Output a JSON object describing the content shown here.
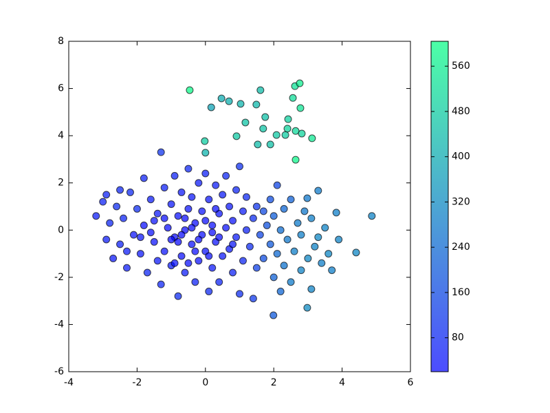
{
  "chart_data": {
    "type": "scatter",
    "colormap": "winter",
    "alpha": 0.7,
    "xlim": [
      -4,
      6
    ],
    "xticks": [
      -4,
      -2,
      0,
      2,
      4,
      6
    ],
    "ylim": [
      -6,
      8
    ],
    "yticks": [
      -6,
      -4,
      -2,
      0,
      2,
      4,
      6,
      8
    ],
    "clim": [
      20,
      604
    ],
    "cticks": [
      80,
      160,
      240,
      320,
      400,
      480,
      560
    ],
    "x": [
      -3.2,
      -3.0,
      -2.9,
      -2.8,
      -2.7,
      -2.6,
      -2.5,
      -2.4,
      -2.3,
      -2.2,
      -2.1,
      -2.0,
      -1.9,
      -1.8,
      -1.8,
      -1.7,
      -1.6,
      -1.5,
      -1.4,
      -1.3,
      -1.3,
      -1.2,
      -1.2,
      -1.1,
      -1.0,
      -1.0,
      -0.9,
      -0.9,
      -0.8,
      -0.8,
      -0.7,
      -0.7,
      -0.6,
      -0.6,
      -0.5,
      -0.5,
      -0.4,
      -0.4,
      -0.3,
      -0.3,
      -0.2,
      -0.2,
      -0.1,
      -0.1,
      0.0,
      0.0,
      0.1,
      0.1,
      0.2,
      0.2,
      0.3,
      0.3,
      0.4,
      0.4,
      0.5,
      0.5,
      0.6,
      0.6,
      0.7,
      0.7,
      0.8,
      0.8,
      0.9,
      0.9,
      1.0,
      1.0,
      1.1,
      1.1,
      1.2,
      1.2,
      1.3,
      1.4,
      1.4,
      1.5,
      1.5,
      1.6,
      1.7,
      1.7,
      1.8,
      1.9,
      1.9,
      2.0,
      2.0,
      2.1,
      2.1,
      2.2,
      2.2,
      2.3,
      2.3,
      2.4,
      2.5,
      2.5,
      2.6,
      2.7,
      2.8,
      2.8,
      2.9,
      3.0,
      3.1,
      3.1,
      3.2,
      3.3,
      3.4,
      3.5,
      3.6,
      3.7,
      3.9,
      -2.9,
      -2.5,
      -1.6,
      -1.4,
      -1.0,
      -0.8,
      -0.6,
      -0.4,
      -0.2,
      0.0,
      0.2,
      0.4,
      -0.3,
      -0.7,
      -1.2,
      0.3,
      -0.9,
      0.1,
      -1.5,
      -2.3,
      0.8,
      -0.5,
      -1.9,
      4.87,
      4.41,
      3.83,
      3.3,
      2.98,
      2.98,
      1.99,
      -0.46,
      0.17,
      0.47,
      0.69,
      1.03,
      1.49,
      1.61,
      1.75,
      1.17,
      0.91,
      -0.02,
      0,
      1.69,
      1.53,
      1.9,
      2.08,
      2.34,
      2.42,
      2.4,
      2.64,
      2.82,
      2.56,
      2.62,
      2.76,
      2.78,
      3.12,
      2.64
    ],
    "y": [
      0.6,
      1.2,
      -0.4,
      0.3,
      -1.2,
      1.0,
      -0.6,
      0.5,
      -1.6,
      1.6,
      -0.2,
      0.9,
      -1.0,
      2.2,
      0.2,
      -1.8,
      1.3,
      -0.5,
      0.7,
      3.3,
      -2.3,
      1.8,
      -0.9,
      0.1,
      -1.5,
      1.1,
      2.3,
      -0.3,
      -2.8,
      0.6,
      1.6,
      -1.1,
      0.0,
      -1.8,
      2.6,
      0.9,
      -0.6,
      1.4,
      -2.2,
      0.3,
      -1.3,
      2.0,
      -0.2,
      0.8,
      -0.9,
      2.4,
      1.3,
      -2.6,
      0.2,
      -1.6,
      1.9,
      -0.5,
      0.7,
      -2.2,
      1.5,
      -1.1,
      0.1,
      2.3,
      -0.8,
      1.0,
      -1.8,
      0.4,
      1.7,
      -0.3,
      -2.7,
      2.7,
      0.8,
      -1.3,
      0.0,
      1.4,
      -0.7,
      -2.9,
      0.5,
      1.0,
      -1.6,
      -0.2,
      0.8,
      -1.2,
      0.2,
      -0.6,
      1.3,
      -2.0,
      0.6,
      -1.0,
      1.9,
      -2.6,
      0.0,
      -1.5,
      0.9,
      -0.4,
      1.3,
      -2.2,
      -0.9,
      0.3,
      -1.7,
      -0.2,
      0.8,
      -1.2,
      -2.5,
      0.5,
      -0.7,
      -0.3,
      -1.4,
      0.1,
      -1.0,
      -1.7,
      -0.4,
      1.5,
      1.7,
      -0.1,
      -1.3,
      -0.4,
      -0.5,
      0.5,
      0.1,
      -0.4,
      0.4,
      -0.1,
      -0.3,
      -0.9,
      -0.2,
      0.5,
      0.9,
      -1.4,
      -1.1,
      0.4,
      -0.9,
      -0.6,
      -1.4,
      -0.3,
      0.6,
      -0.95,
      0.74,
      1.67,
      1.35,
      -3.29,
      -3.61,
      5.93,
      5.2,
      5.58,
      5.46,
      5.35,
      5.32,
      5.93,
      4.79,
      4.56,
      3.98,
      3.77,
      3.28,
      4.3,
      3.63,
      3.63,
      4.03,
      4.03,
      4.7,
      4.3,
      4.2,
      4.09,
      5.6,
      6.1,
      6.22,
      5.17,
      3.89,
      2.98
    ],
    "c": [
      60,
      70,
      55,
      80,
      50,
      90,
      65,
      75,
      60,
      85,
      40,
      95,
      45,
      70,
      30,
      80,
      60,
      35,
      50,
      110,
      75,
      65,
      40,
      30,
      55,
      45,
      70,
      25,
      90,
      35,
      50,
      30,
      25,
      60,
      80,
      40,
      30,
      45,
      70,
      25,
      35,
      55,
      30,
      40,
      35,
      65,
      45,
      85,
      30,
      50,
      60,
      35,
      40,
      75,
      55,
      45,
      35,
      80,
      50,
      45,
      70,
      40,
      75,
      55,
      95,
      100,
      60,
      80,
      70,
      85,
      90,
      120,
      95,
      110,
      140,
      150,
      160,
      170,
      180,
      200,
      170,
      220,
      210,
      240,
      150,
      230,
      250,
      260,
      230,
      270,
      220,
      280,
      290,
      280,
      300,
      290,
      270,
      310,
      300,
      290,
      300,
      310,
      290,
      300,
      310,
      290,
      300,
      70,
      80,
      35,
      50,
      28,
      25,
      22,
      22,
      24,
      26,
      25,
      28,
      26,
      24,
      30,
      30,
      40,
      32,
      40,
      55,
      50,
      33,
      45,
      300,
      310,
      290,
      280,
      270,
      320,
      200,
      590,
      380,
      400,
      410,
      420,
      430,
      440,
      450,
      460,
      470,
      480,
      420,
      460,
      440,
      450,
      470,
      480,
      490,
      500,
      510,
      500,
      520,
      530,
      560,
      540,
      550,
      580
    ]
  }
}
